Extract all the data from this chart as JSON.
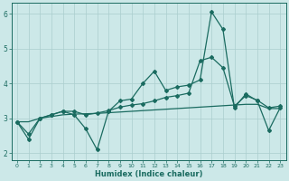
{
  "xlabel": "Humidex (Indice chaleur)",
  "xlim": [
    -0.5,
    23.5
  ],
  "ylim": [
    1.8,
    6.3
  ],
  "yticks": [
    2,
    3,
    4,
    5,
    6
  ],
  "xticks": [
    0,
    1,
    2,
    3,
    4,
    5,
    6,
    7,
    8,
    9,
    10,
    11,
    12,
    13,
    14,
    15,
    16,
    17,
    18,
    19,
    20,
    21,
    22,
    23
  ],
  "bg_color": "#cce8e8",
  "line_color": "#1a6b60",
  "grid_color": "#aacece",
  "series1_x": [
    0,
    1,
    2,
    3,
    4,
    5,
    6,
    7,
    8,
    9,
    10,
    11,
    12,
    13,
    14,
    15,
    16,
    17,
    18,
    19,
    20,
    21,
    22,
    23
  ],
  "series1_y": [
    2.9,
    2.4,
    3.0,
    3.1,
    3.2,
    3.1,
    2.7,
    2.1,
    3.2,
    3.5,
    3.55,
    4.0,
    4.35,
    3.8,
    3.9,
    3.95,
    4.1,
    6.05,
    5.55,
    3.3,
    3.7,
    3.5,
    2.65,
    3.3
  ],
  "series2_x": [
    0,
    1,
    2,
    3,
    4,
    5,
    6,
    7,
    8,
    9,
    10,
    11,
    12,
    13,
    14,
    15,
    16,
    17,
    18,
    19,
    20,
    21,
    22,
    23
  ],
  "series2_y": [
    2.9,
    2.9,
    3.0,
    3.05,
    3.1,
    3.12,
    3.13,
    3.14,
    3.16,
    3.18,
    3.2,
    3.22,
    3.24,
    3.26,
    3.28,
    3.3,
    3.32,
    3.34,
    3.36,
    3.38,
    3.4,
    3.4,
    3.28,
    3.28
  ],
  "series3_x": [
    0,
    1,
    2,
    3,
    4,
    5,
    6,
    7,
    8,
    9,
    10,
    11,
    12,
    13,
    14,
    15,
    16,
    17,
    18,
    19,
    20,
    21,
    22,
    23
  ],
  "series3_y": [
    2.9,
    2.55,
    3.0,
    3.1,
    3.2,
    3.2,
    3.1,
    3.15,
    3.22,
    3.32,
    3.38,
    3.42,
    3.5,
    3.6,
    3.65,
    3.72,
    4.65,
    4.75,
    4.45,
    3.35,
    3.65,
    3.52,
    3.3,
    3.35
  ],
  "marker": "D",
  "markersize": 2.0,
  "linewidth": 0.9
}
